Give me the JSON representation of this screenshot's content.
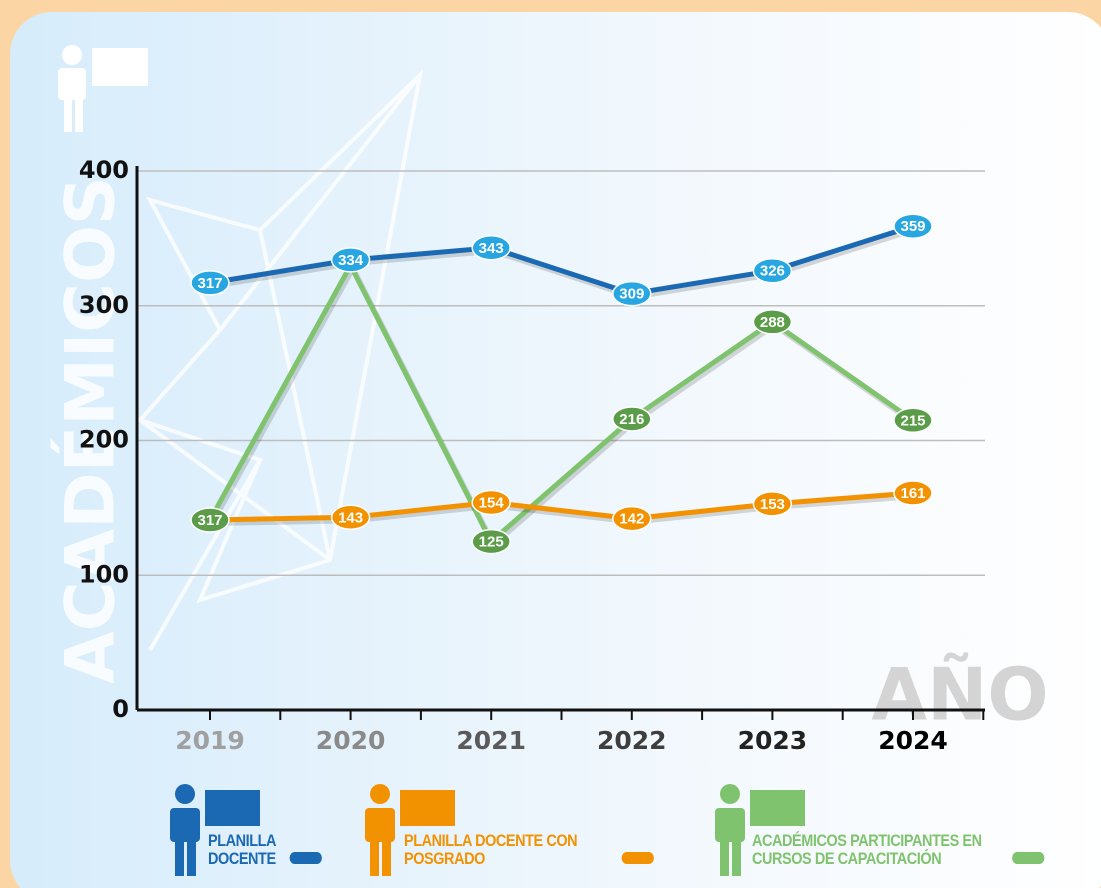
{
  "chart_data": {
    "type": "line",
    "categories": [
      "2019",
      "2020",
      "2021",
      "2022",
      "2023",
      "2024"
    ],
    "series": [
      {
        "name": "PLANILLA DOCENTE",
        "color": "#1b69b2",
        "label_color": "#27a6e1",
        "values": [
          317,
          334,
          343,
          309,
          326,
          359
        ],
        "value_labels": [
          "317",
          "334",
          "343",
          "309",
          "326",
          "359"
        ]
      },
      {
        "name": "PLANILLA DOCENTE CON POSGRADO",
        "color": "#f39200",
        "label_color": "#f39200",
        "values": [
          141,
          143,
          154,
          142,
          153,
          161
        ],
        "value_labels": [
          null,
          "143",
          "154",
          "142",
          "153",
          "161"
        ]
      },
      {
        "name": "ACADÉMICOS PARTICIPANTES EN CURSOS DE CAPACITACIÓN",
        "color": "#80c36e",
        "label_color": "#5b9c48",
        "values": [
          141,
          330,
          125,
          216,
          288,
          215
        ],
        "value_labels": [
          null,
          null,
          "125",
          "216",
          "288",
          "215"
        ]
      }
    ],
    "annotation": "317",
    "y_label": "ACADÉMICOS",
    "x_label": "AÑO",
    "ylim": [
      0,
      400
    ],
    "yticks": [
      0,
      100,
      200,
      300,
      400
    ],
    "grid": true
  }
}
